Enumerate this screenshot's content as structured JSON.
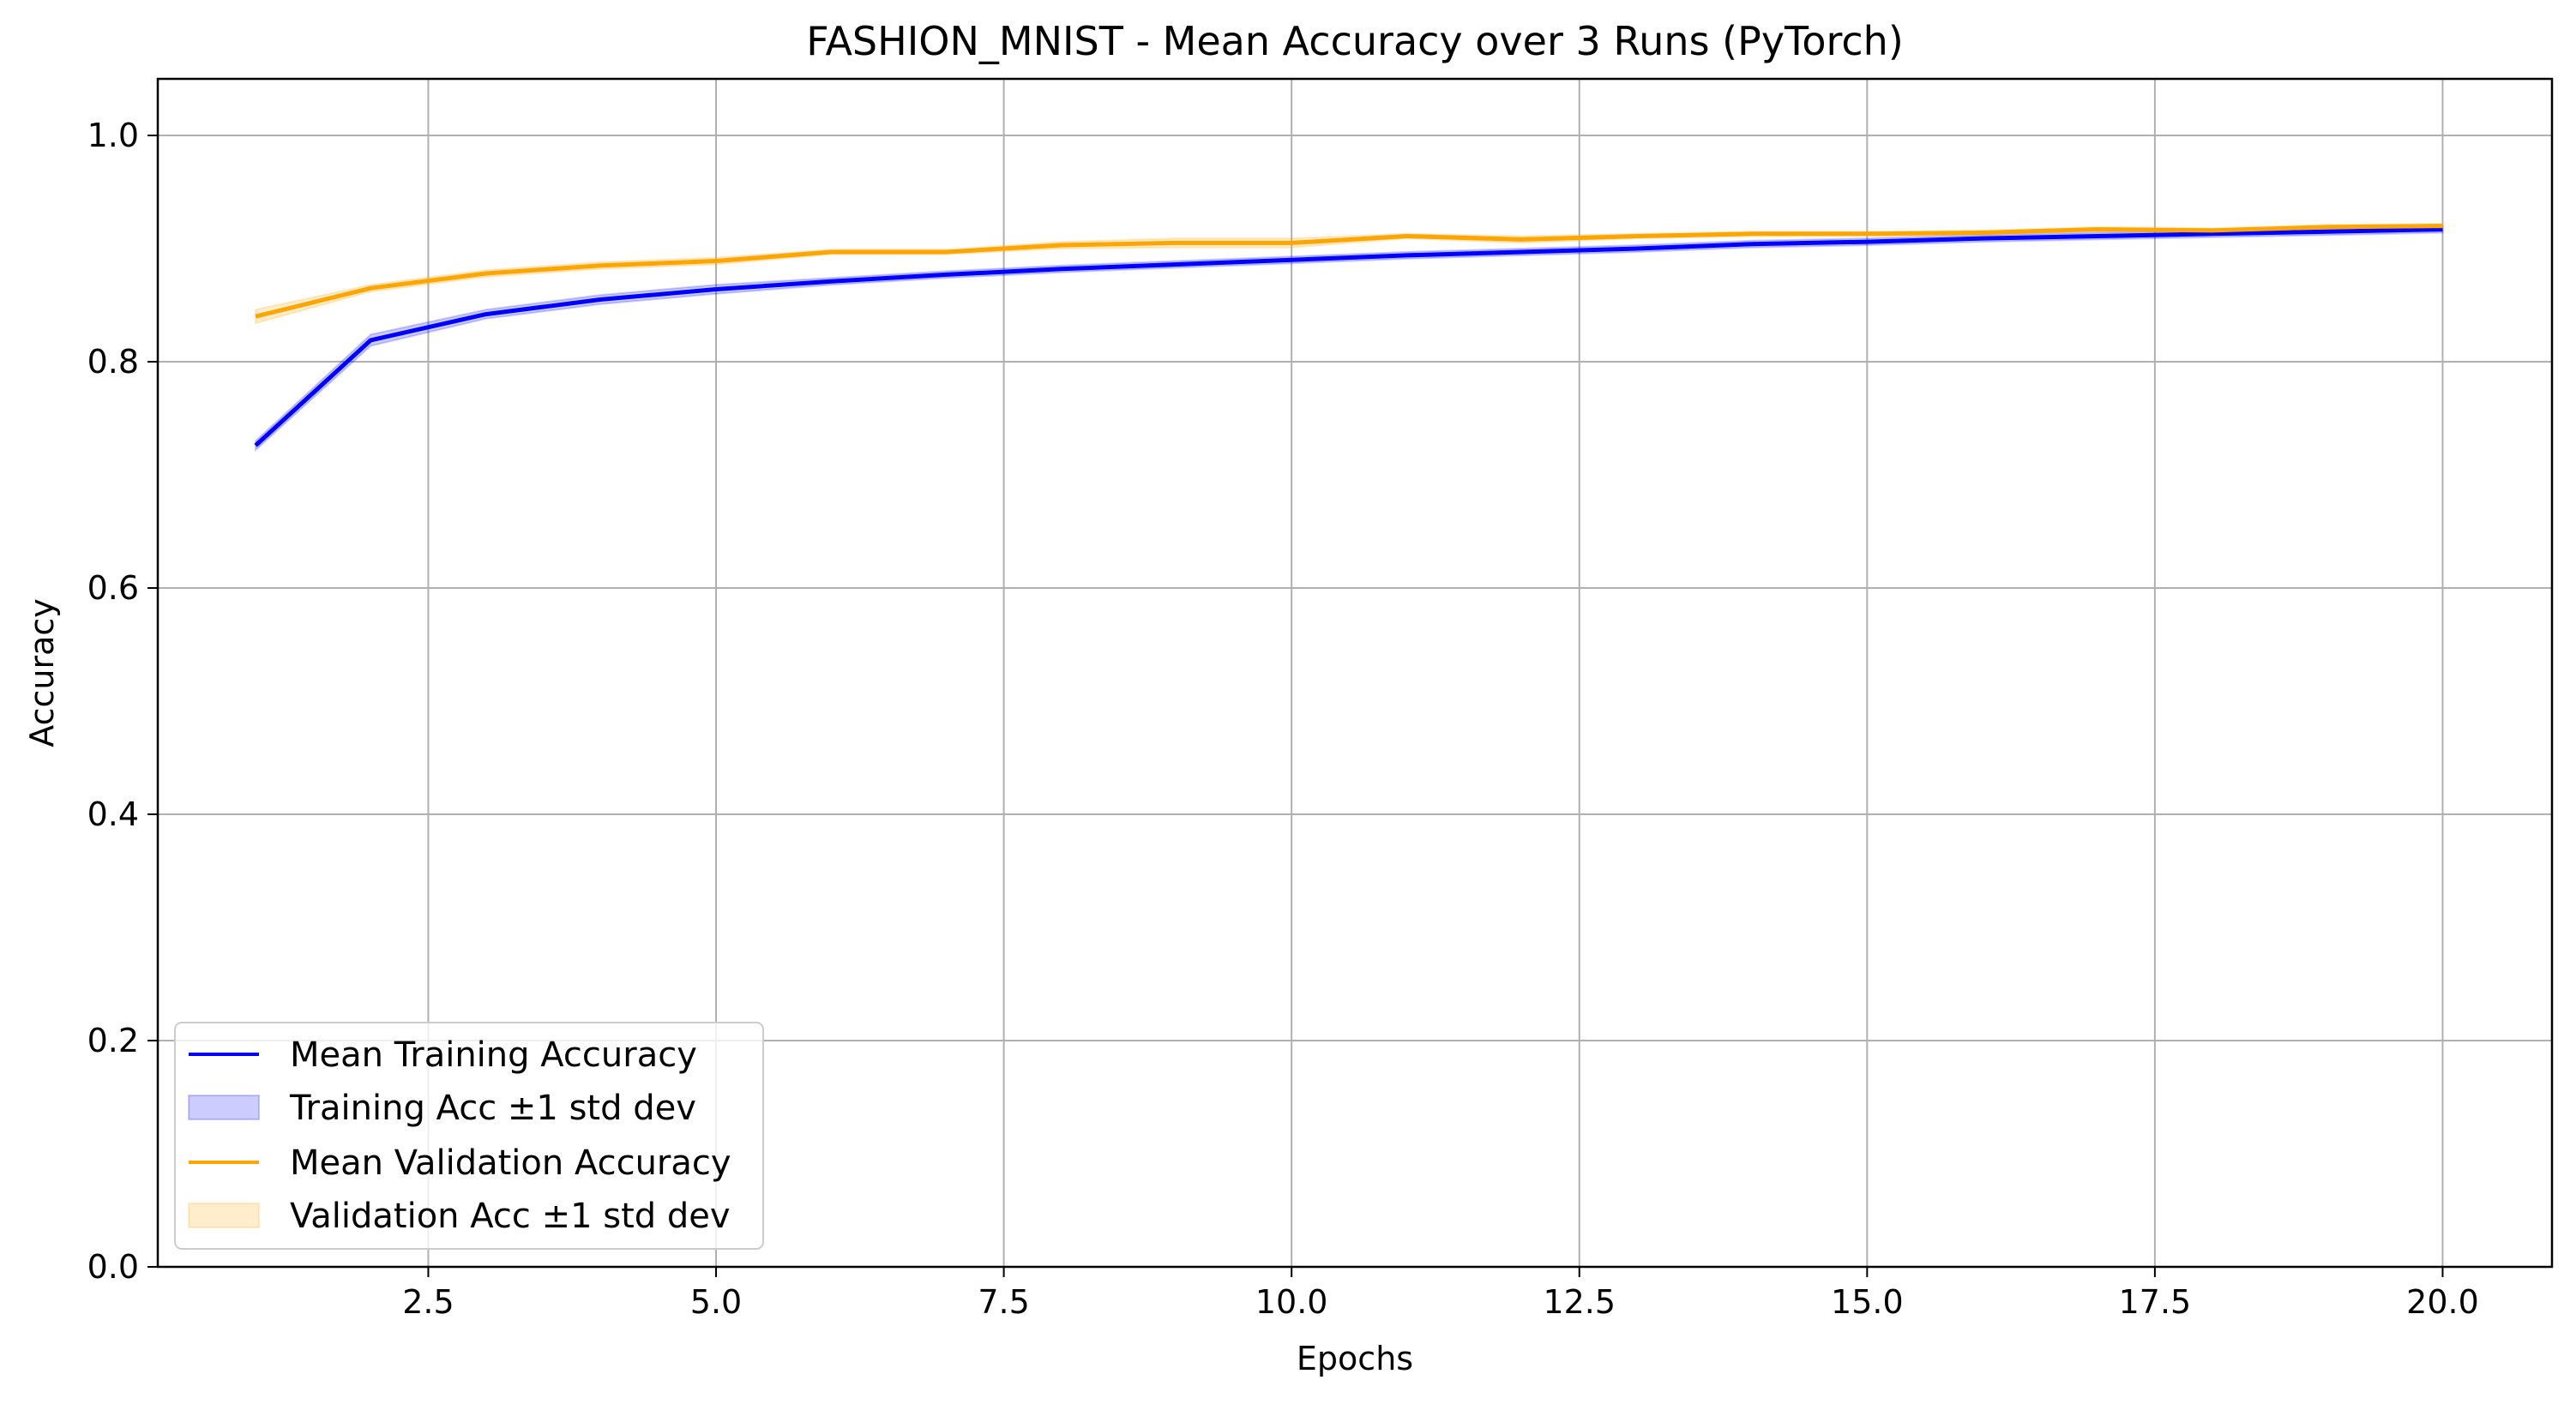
{
  "chart_data": {
    "type": "line",
    "title": "FASHION_MNIST - Mean Accuracy over 3 Runs (PyTorch)",
    "xlabel": "Epochs",
    "ylabel": "Accuracy",
    "xlim": [
      0.15,
      20.95
    ],
    "ylim": [
      0.0,
      1.05
    ],
    "xticks": [
      2.5,
      5.0,
      7.5,
      10.0,
      12.5,
      15.0,
      17.5,
      20.0
    ],
    "xtick_labels": [
      "2.5",
      "5.0",
      "7.5",
      "10.0",
      "12.5",
      "15.0",
      "17.5",
      "20.0"
    ],
    "yticks": [
      0.0,
      0.2,
      0.4,
      0.6,
      0.8,
      1.0
    ],
    "ytick_labels": [
      "0.0",
      "0.2",
      "0.4",
      "0.6",
      "0.8",
      "1.0"
    ],
    "grid": true,
    "legend_position": "lower-left",
    "x": [
      1,
      2,
      3,
      4,
      5,
      6,
      7,
      8,
      9,
      10,
      11,
      12,
      13,
      14,
      15,
      16,
      17,
      18,
      19,
      20
    ],
    "series": [
      {
        "name": "Mean Training Accuracy",
        "band_name": "Training Acc ±1 std dev",
        "color": "#0000ff",
        "band_color": "#0000ff",
        "values": [
          0.726,
          0.819,
          0.842,
          0.855,
          0.864,
          0.871,
          0.877,
          0.882,
          0.886,
          0.89,
          0.894,
          0.897,
          0.9,
          0.904,
          0.906,
          0.909,
          0.911,
          0.913,
          0.915,
          0.917
        ],
        "std": [
          0.004,
          0.005,
          0.004,
          0.004,
          0.004,
          0.003,
          0.003,
          0.003,
          0.003,
          0.003,
          0.003,
          0.003,
          0.003,
          0.003,
          0.003,
          0.003,
          0.003,
          0.003,
          0.003,
          0.003
        ]
      },
      {
        "name": "Mean Validation Accuracy",
        "band_name": "Validation Acc ±1 std dev",
        "color": "#ffa500",
        "band_color": "#ffa500",
        "values": [
          0.84,
          0.865,
          0.878,
          0.885,
          0.889,
          0.897,
          0.897,
          0.903,
          0.905,
          0.905,
          0.911,
          0.908,
          0.911,
          0.913,
          0.913,
          0.914,
          0.917,
          0.916,
          0.919,
          0.92
        ],
        "std": [
          0.006,
          0.003,
          0.003,
          0.003,
          0.003,
          0.002,
          0.002,
          0.003,
          0.004,
          0.004,
          0.002,
          0.003,
          0.002,
          0.002,
          0.002,
          0.002,
          0.002,
          0.002,
          0.002,
          0.002
        ]
      }
    ]
  }
}
